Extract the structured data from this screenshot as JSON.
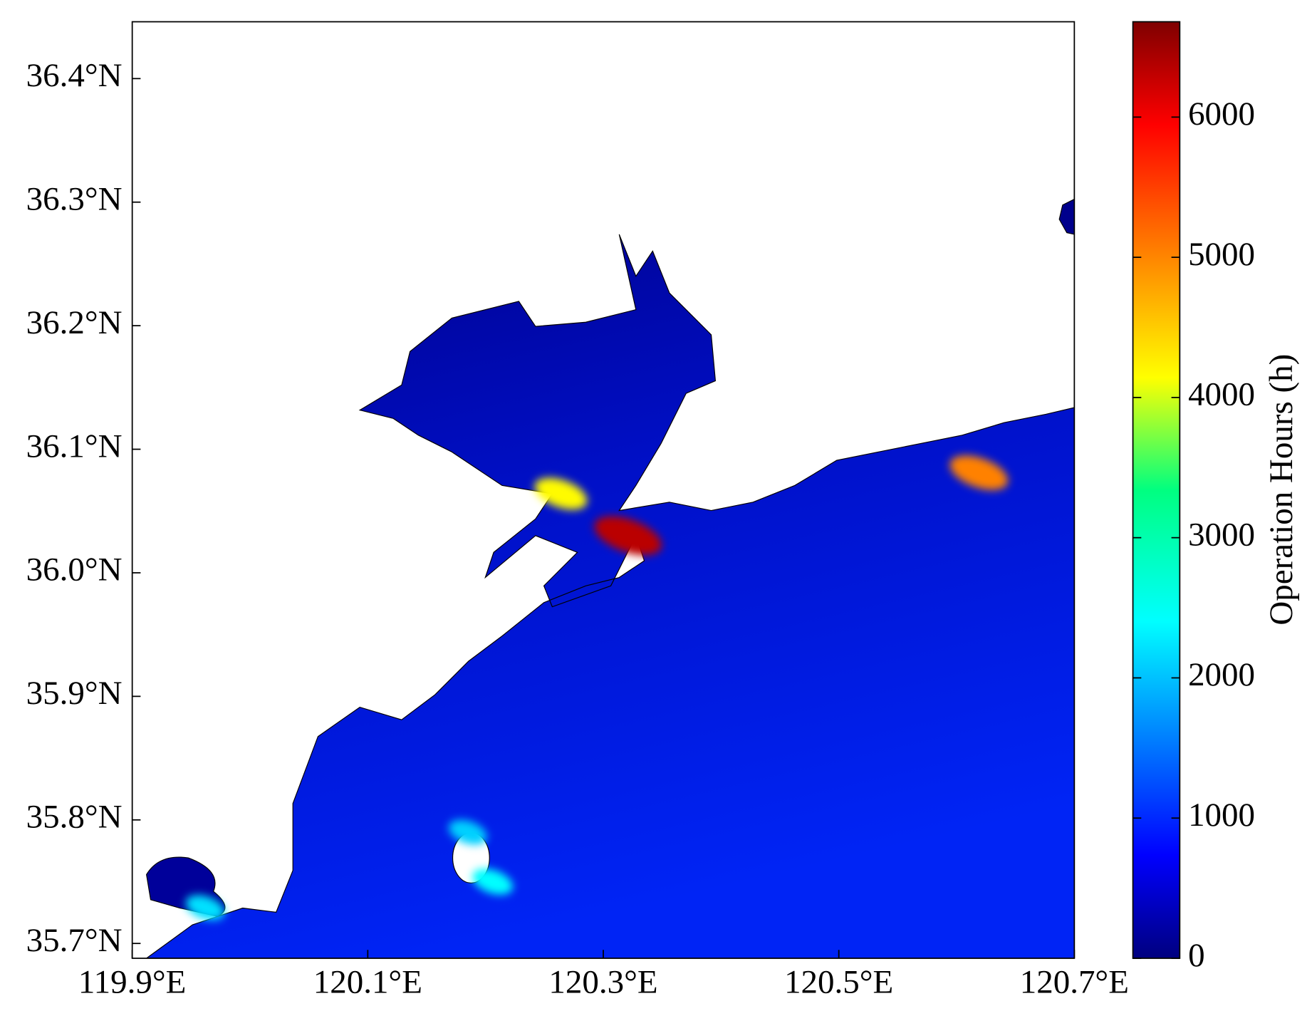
{
  "chart_data": {
    "type": "map",
    "colorbar_label": "Operation Hours (h)",
    "colormap": "jet",
    "clim": [
      0,
      6680
    ],
    "cticks": [
      0,
      1000,
      2000,
      3000,
      4000,
      5000,
      6000
    ],
    "xlim": [
      119.9,
      120.7
    ],
    "xticks": [
      {
        "value": 119.9,
        "label": "119.9°E"
      },
      {
        "value": 120.1,
        "label": "120.1°E"
      },
      {
        "value": 120.3,
        "label": "120.3°E"
      },
      {
        "value": 120.5,
        "label": "120.5°E"
      },
      {
        "value": 120.7,
        "label": "120.7°E"
      }
    ],
    "ylim": [
      35.688,
      36.446
    ],
    "yticks": [
      {
        "value": 35.7,
        "label": "35.7°N"
      },
      {
        "value": 35.8,
        "label": "35.8°N"
      },
      {
        "value": 35.9,
        "label": "35.9°N"
      },
      {
        "value": 36.0,
        "label": "36.0°N"
      },
      {
        "value": 36.1,
        "label": "36.1°N"
      },
      {
        "value": 36.2,
        "label": "36.2°N"
      },
      {
        "value": 36.3,
        "label": "36.3°N"
      },
      {
        "value": 36.4,
        "label": "36.4°N"
      }
    ],
    "hotspots": [
      {
        "lon": 120.321,
        "lat": 36.03,
        "value": 6300
      },
      {
        "lon": 120.264,
        "lat": 36.064,
        "value": 4200
      },
      {
        "lon": 120.619,
        "lat": 36.081,
        "value": 5000
      },
      {
        "lon": 120.185,
        "lat": 35.79,
        "value": 2200
      },
      {
        "lon": 120.206,
        "lat": 35.75,
        "value": 2500
      },
      {
        "lon": 119.962,
        "lat": 35.729,
        "value": 2300
      }
    ]
  }
}
